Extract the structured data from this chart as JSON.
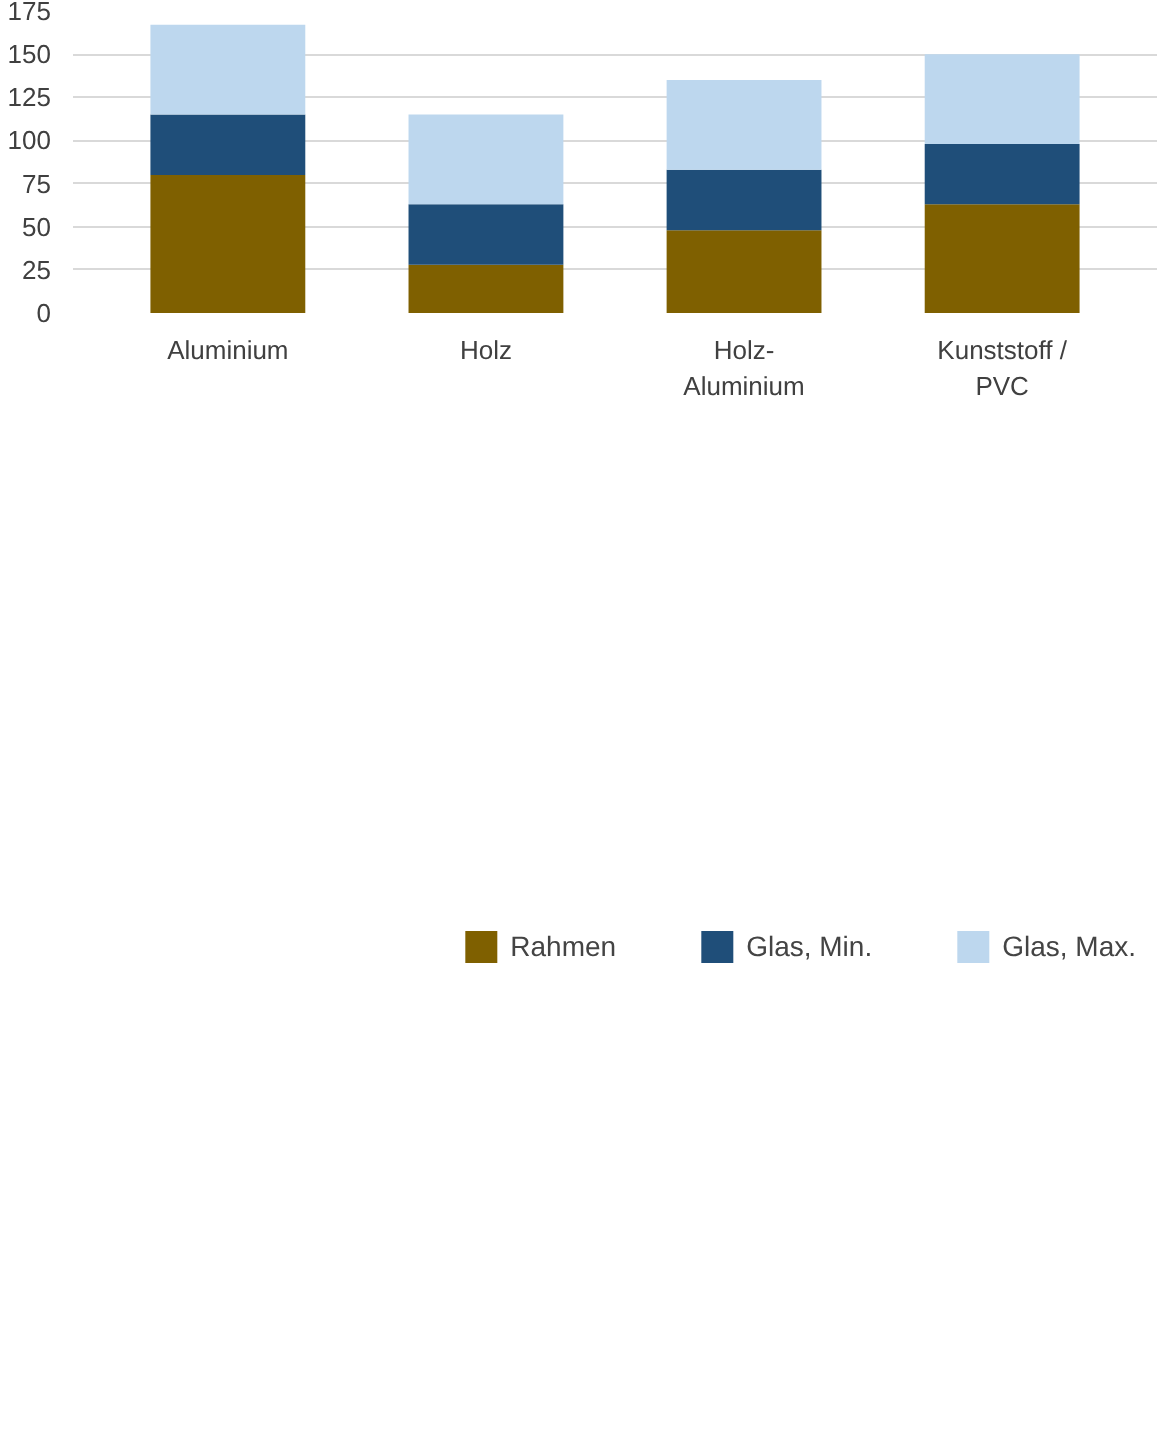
{
  "chart_data": {
    "type": "bar",
    "stacked": true,
    "categories": [
      "Aluminium",
      "Holz",
      "Holz-\nAluminium",
      "Kunststoff /\nPVC"
    ],
    "series": [
      {
        "name": "Rahmen",
        "color": "#7f6000",
        "values": [
          80,
          28,
          48,
          63
        ]
      },
      {
        "name": "Glas, Min.",
        "color": "#1f4e79",
        "values": [
          35,
          35,
          35,
          35
        ]
      },
      {
        "name": "Glas, Max.",
        "color": "#bdd7ee",
        "values": [
          52,
          52,
          52,
          52
        ]
      }
    ],
    "ylim": [
      0,
      175
    ],
    "yticks": [
      0,
      25,
      50,
      75,
      100,
      125,
      150,
      175
    ],
    "grid": "y",
    "legend": "bottom"
  }
}
